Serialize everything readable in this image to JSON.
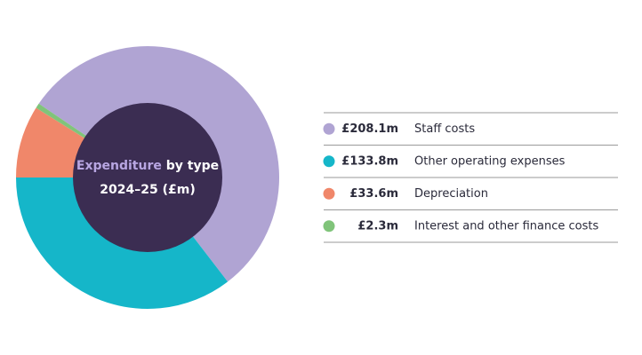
{
  "chart_data": {
    "type": "donut",
    "title_highlight": "Expenditure",
    "title": "by type",
    "subtitle": "2024–25 (£m)",
    "series": [
      {
        "name": "Staff costs",
        "color": "#b0a4d3",
        "values": [
          208.1
        ],
        "value_labels": [
          "£208.1m"
        ]
      },
      {
        "name": "Other operating expenses",
        "color": "#15b6c9",
        "values": [
          133.8
        ],
        "value_labels": [
          "£133.8m"
        ]
      },
      {
        "name": "Depreciation",
        "color": "#f0876a",
        "values": [
          33.6
        ],
        "value_labels": [
          "£33.6m"
        ]
      },
      {
        "name": "Interest and other finance costs",
        "color": "#80c47a",
        "values": [
          2.3
        ],
        "value_labels": [
          "£2.3m"
        ]
      }
    ],
    "center_color": "#3b2d52",
    "highlight_color": "#b8a6e2"
  }
}
